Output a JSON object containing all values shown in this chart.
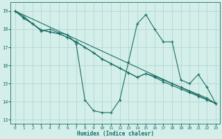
{
  "xlabel": "Humidex (Indice chaleur)",
  "xlim": [
    -0.5,
    23.5
  ],
  "ylim": [
    12.8,
    19.5
  ],
  "yticks": [
    13,
    14,
    15,
    16,
    17,
    18,
    19
  ],
  "xticks": [
    0,
    1,
    2,
    3,
    4,
    5,
    6,
    7,
    8,
    9,
    10,
    11,
    12,
    13,
    14,
    15,
    16,
    17,
    18,
    19,
    20,
    21,
    22,
    23
  ],
  "bg_color": "#d4eeea",
  "grid_color": "#aed4ce",
  "line_color": "#1a6e64",
  "line1_y": [
    19.0,
    18.7,
    18.3,
    17.9,
    18.0,
    17.8,
    17.7,
    17.2,
    14.1,
    13.5,
    13.4,
    13.4,
    14.1,
    16.2,
    18.3,
    18.8,
    18.0,
    17.3,
    17.3,
    15.2,
    15.0,
    15.5,
    14.8,
    13.9
  ],
  "line2_y": [
    19.0,
    18.6,
    18.3,
    17.95,
    17.85,
    17.75,
    17.55,
    17.3,
    17.0,
    16.7,
    16.35,
    16.1,
    15.85,
    15.6,
    15.35,
    15.55,
    15.4,
    15.2,
    15.0,
    14.8,
    14.6,
    14.4,
    14.2,
    13.9
  ],
  "line3_y": [
    19.0,
    18.6,
    18.3,
    17.95,
    17.85,
    17.75,
    17.55,
    17.3,
    17.0,
    16.7,
    16.35,
    16.1,
    15.85,
    15.6,
    15.35,
    15.55,
    15.35,
    15.1,
    14.9,
    14.7,
    14.5,
    14.3,
    14.1,
    13.9
  ],
  "line4_y": [
    19.0,
    13.9
  ]
}
